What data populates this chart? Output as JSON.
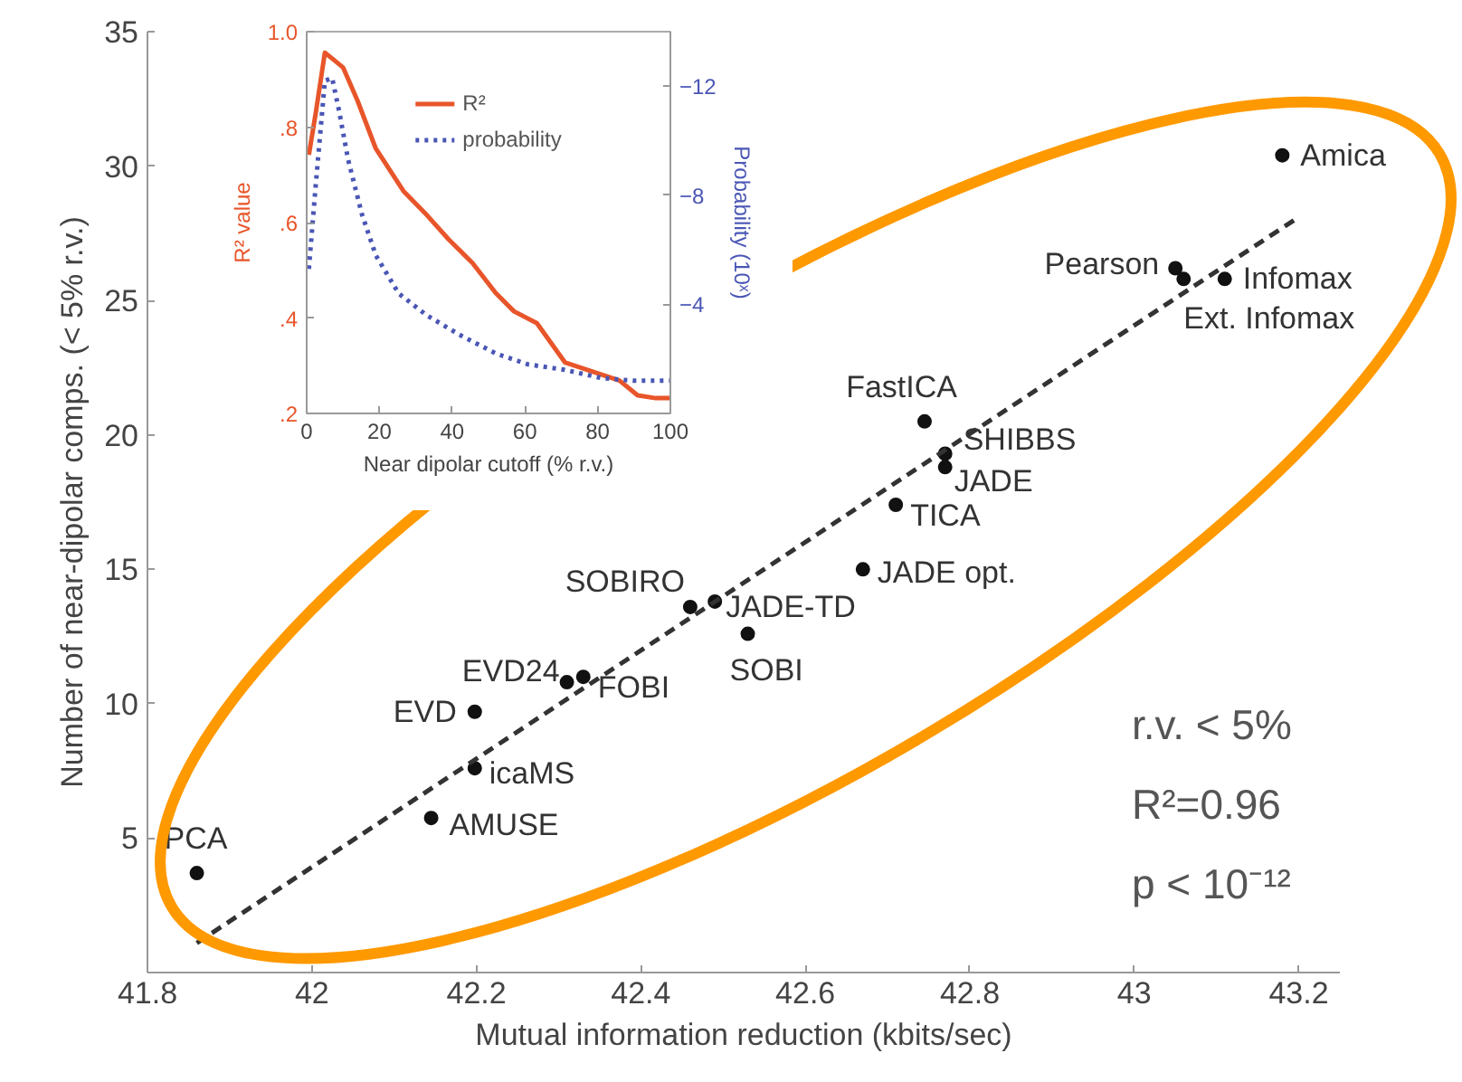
{
  "chart_data": [
    {
      "type": "scatter",
      "xlabel": "Mutual information reduction (kbits/sec)",
      "ylabel": "Number of near-dipolar comps. (< 5% r.v.)",
      "xlim": [
        41.8,
        43.25
      ],
      "ylim": [
        0,
        35
      ],
      "xticks": [
        41.8,
        42,
        42.2,
        42.4,
        42.6,
        42.8,
        43,
        43.2
      ],
      "yticks": [
        5,
        10,
        15,
        20,
        25,
        30,
        35
      ],
      "grid": false,
      "marker": "circle",
      "annotations": [
        "r.v. < 5%",
        "R²=0.96",
        "p < 10⁻¹²"
      ],
      "series": [
        {
          "name": "PCA",
          "color": "#111111",
          "x": [
            41.86
          ],
          "values": [
            3.7
          ]
        },
        {
          "name": "AMUSE",
          "color": "#111111",
          "x": [
            42.145
          ],
          "values": [
            5.75
          ]
        },
        {
          "name": "icaMS",
          "color": "#111111",
          "x": [
            42.198
          ],
          "values": [
            7.6
          ]
        },
        {
          "name": "EVD",
          "color": "#111111",
          "x": [
            42.198
          ],
          "values": [
            9.7
          ]
        },
        {
          "name": "EVD24",
          "color": "#111111",
          "x": [
            42.31
          ],
          "values": [
            10.8
          ]
        },
        {
          "name": "FOBI",
          "color": "#111111",
          "x": [
            42.33
          ],
          "values": [
            11.0
          ]
        },
        {
          "name": "SOBIRO",
          "color": "#111111",
          "x": [
            42.46
          ],
          "values": [
            13.6
          ]
        },
        {
          "name": "JADE-TD",
          "color": "#111111",
          "x": [
            42.49
          ],
          "values": [
            13.8
          ]
        },
        {
          "name": "SOBI",
          "color": "#111111",
          "x": [
            42.53
          ],
          "values": [
            12.6
          ]
        },
        {
          "name": "JADE opt.",
          "color": "#111111",
          "x": [
            42.67
          ],
          "values": [
            15.0
          ]
        },
        {
          "name": "TICA",
          "color": "#111111",
          "x": [
            42.71
          ],
          "values": [
            17.4
          ]
        },
        {
          "name": "JADE",
          "color": "#111111",
          "x": [
            42.77
          ],
          "values": [
            18.8
          ]
        },
        {
          "name": "SHIBBS",
          "color": "#111111",
          "x": [
            42.77
          ],
          "values": [
            19.3
          ]
        },
        {
          "name": "FastICA",
          "color": "#111111",
          "x": [
            42.745
          ],
          "values": [
            20.5
          ]
        },
        {
          "name": "Pearson",
          "color": "#111111",
          "x": [
            43.05
          ],
          "values": [
            26.2
          ]
        },
        {
          "name": "Ext. Infomax",
          "color": "#111111",
          "x": [
            43.06
          ],
          "values": [
            25.8
          ]
        },
        {
          "name": "Infomax",
          "color": "#111111",
          "x": [
            43.11
          ],
          "values": [
            25.8
          ]
        },
        {
          "name": "Amica",
          "color": "#111111",
          "x": [
            43.18
          ],
          "values": [
            30.4
          ]
        },
        {
          "type": "line",
          "color": "#333333",
          "line_style": "dashed",
          "marker": "none",
          "x": [
            41.86,
            43.195
          ],
          "values": [
            1.1,
            28.0
          ]
        }
      ]
    },
    {
      "type": "line",
      "xlabel": "Near dipolar cutoff (% r.v.)",
      "ylabel": "R² value",
      "y2label": "Probability (10ˣ)",
      "xlim": [
        0,
        100
      ],
      "ylim": [
        0.2,
        1.0
      ],
      "y2lim": [
        0,
        -14
      ],
      "xticks": [
        0,
        20,
        40,
        60,
        80,
        100
      ],
      "yticks": [
        {
          "value": 0.2,
          "label": ".2"
        },
        {
          "value": 0.4,
          "label": ".4"
        },
        {
          "value": 0.6,
          "label": ".6"
        },
        {
          "value": 0.8,
          "label": ".8"
        },
        {
          "value": 1.0,
          "label": "1.0"
        }
      ],
      "y2ticks": [
        -12,
        -8,
        -4
      ],
      "grid": false,
      "legend": "top",
      "series": [
        {
          "name": "R²",
          "color": "#e8552a",
          "line_style": "solid",
          "x": [
            0.6,
            2.5,
            5,
            7.6,
            10,
            14,
            19,
            26.6,
            33,
            39,
            45.6,
            52,
            57,
            63.3,
            71,
            78.5,
            86,
            91,
            96,
            100
          ],
          "values": [
            0.742,
            0.83,
            0.956,
            0.94,
            0.925,
            0.855,
            0.755,
            0.666,
            0.616,
            0.565,
            0.515,
            0.452,
            0.414,
            0.389,
            0.307,
            0.288,
            0.269,
            0.238,
            0.232,
            0.232
          ]
        },
        {
          "name": "probability",
          "color": "#4a56b5",
          "line_style": "dotted",
          "axis": "y2",
          "x": [
            0.6,
            2.5,
            5,
            7,
            8.9,
            11.4,
            15.2,
            19,
            25.3,
            33,
            41.8,
            52,
            60.8,
            70.9,
            81,
            89.9,
            100
          ],
          "values": [
            -5.3,
            -8.4,
            -12.2,
            -12.3,
            -11.1,
            -9.3,
            -7.3,
            -5.8,
            -4.4,
            -3.6,
            -2.9,
            -2.2,
            -1.8,
            -1.6,
            -1.3,
            -1.2,
            -1.2
          ]
        }
      ]
    }
  ]
}
